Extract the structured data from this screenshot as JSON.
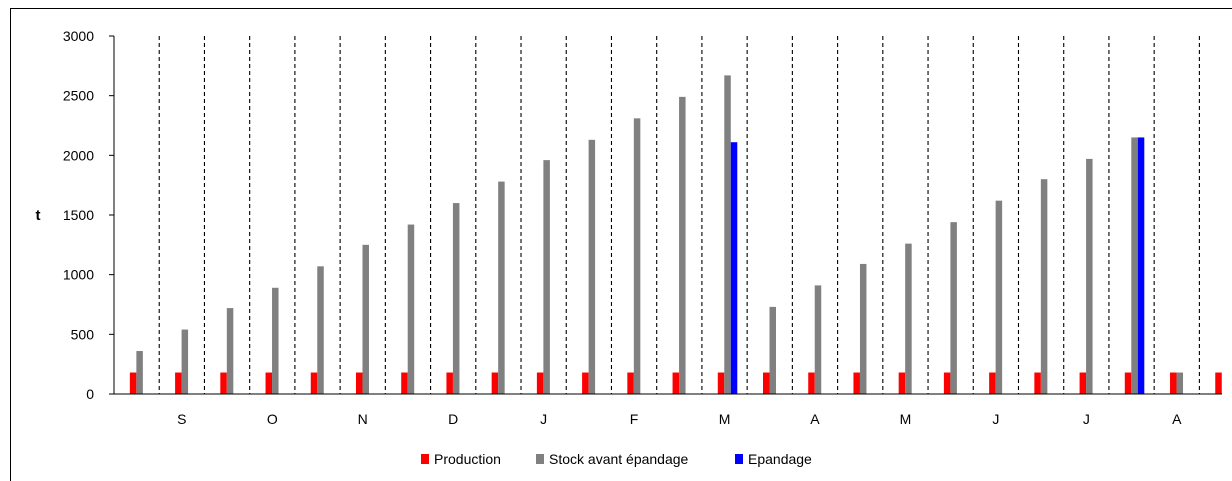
{
  "chart_data": {
    "type": "bar",
    "ylabel": "t",
    "ylim": [
      0,
      3000
    ],
    "yticks": [
      "0",
      "500",
      "1000",
      "1500",
      "2000",
      "2500",
      "3000"
    ],
    "month_labels": [
      "S",
      "O",
      "N",
      "D",
      "J",
      "F",
      "M",
      "A",
      "M",
      "J",
      "J",
      "A"
    ],
    "legend_position": "bottom",
    "series": [
      {
        "name": "Production",
        "color": "#ff0000",
        "values": [
          180,
          180,
          180,
          180,
          180,
          180,
          180,
          180,
          180,
          180,
          180,
          180,
          180,
          180,
          180,
          180,
          180,
          180,
          180,
          180,
          180,
          180,
          180,
          180,
          180
        ]
      },
      {
        "name": "Stock avant épandage",
        "color": "#808080",
        "values": [
          360,
          540,
          720,
          890,
          1070,
          1250,
          1420,
          1600,
          1780,
          1960,
          2130,
          2310,
          2490,
          2670,
          730,
          910,
          1090,
          1260,
          1440,
          1620,
          1800,
          1970,
          2150,
          180,
          0
        ]
      },
      {
        "name": "Epandage",
        "color": "#0000ff",
        "values": [
          0,
          0,
          0,
          0,
          0,
          0,
          0,
          0,
          0,
          0,
          0,
          0,
          0,
          2110,
          0,
          0,
          0,
          0,
          0,
          0,
          0,
          0,
          2150,
          0,
          0
        ]
      }
    ]
  }
}
